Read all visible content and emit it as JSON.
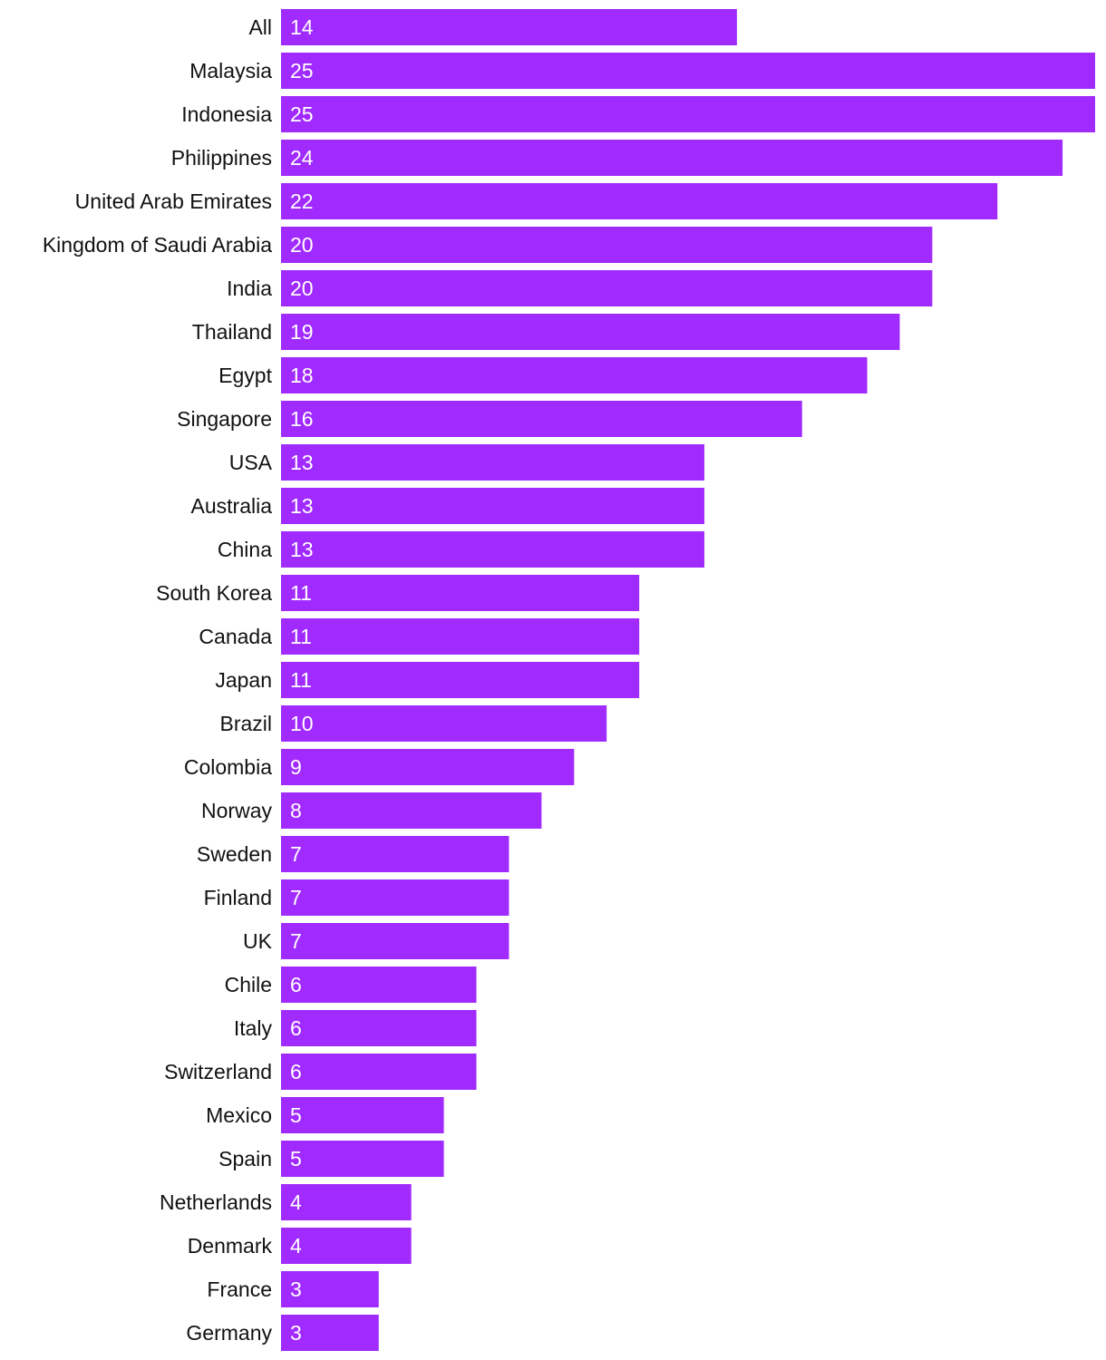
{
  "colors": {
    "bar": "#a12bff",
    "category_text": "#111111",
    "value_text": "#ffffff",
    "background": "#ffffff"
  },
  "chart_data": {
    "type": "bar",
    "orientation": "horizontal",
    "categories": [
      "All",
      "Malaysia",
      "Indonesia",
      "Philippines",
      "United Arab Emirates",
      "Kingdom of Saudi Arabia",
      "India",
      "Thailand",
      "Egypt",
      "Singapore",
      "USA",
      "Australia",
      "China",
      "South Korea",
      "Canada",
      "Japan",
      "Brazil",
      "Colombia",
      "Norway",
      "Sweden",
      "Finland",
      "UK",
      "Chile",
      "Italy",
      "Switzerland",
      "Mexico",
      "Spain",
      "Netherlands",
      "Denmark",
      "France",
      "Germany"
    ],
    "values": [
      14,
      25,
      25,
      24,
      22,
      20,
      20,
      19,
      18,
      16,
      13,
      13,
      13,
      11,
      11,
      11,
      10,
      9,
      8,
      7,
      7,
      7,
      6,
      6,
      6,
      5,
      5,
      4,
      4,
      3,
      3
    ],
    "xlim": [
      0,
      25
    ],
    "grid": false,
    "legend": "none",
    "data_labels": "inside-start"
  }
}
